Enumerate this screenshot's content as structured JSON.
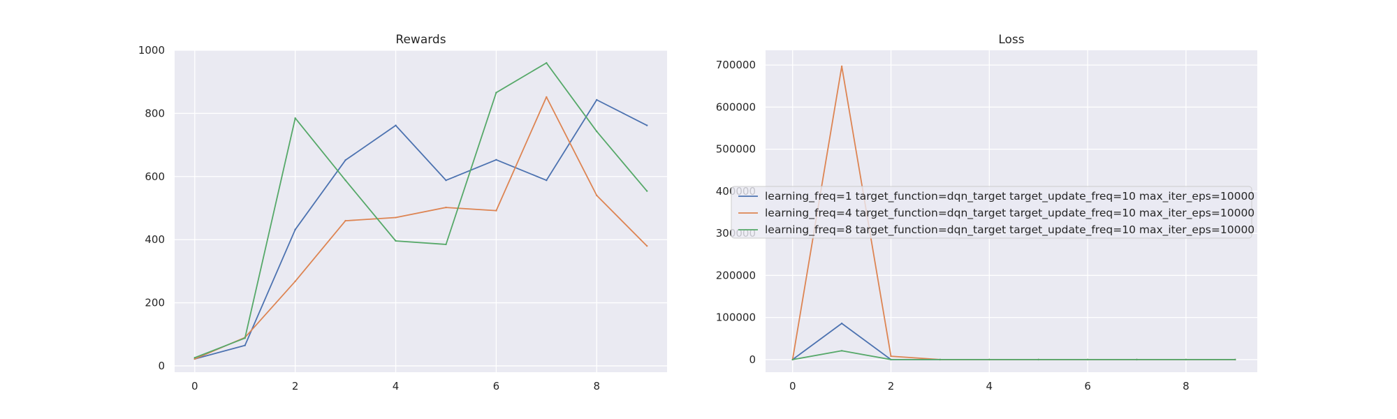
{
  "colors": {
    "background": "#eaeaf2",
    "grid": "#ffffff",
    "series": [
      "#4c72b0",
      "#dd8452",
      "#55a868"
    ]
  },
  "chart_data": [
    {
      "type": "line",
      "title": "Rewards",
      "xlabel": "",
      "ylabel": "",
      "x": [
        0,
        1,
        2,
        3,
        4,
        5,
        6,
        7,
        8,
        9
      ],
      "xlim": [
        -0.4,
        9.4
      ],
      "ylim": [
        -20,
        1000
      ],
      "xticks": [
        0,
        2,
        4,
        6,
        8
      ],
      "yticks": [
        0,
        200,
        400,
        600,
        800,
        1000
      ],
      "grid": true,
      "series": [
        {
          "values": [
            22,
            65,
            432,
            652,
            762,
            588,
            653,
            588,
            843,
            762
          ]
        },
        {
          "values": [
            22,
            90,
            268,
            460,
            470,
            502,
            492,
            852,
            540,
            380
          ]
        },
        {
          "values": [
            26,
            88,
            785,
            588,
            396,
            385,
            866,
            960,
            743,
            554
          ]
        }
      ]
    },
    {
      "type": "line",
      "title": "Loss",
      "xlabel": "",
      "ylabel": "",
      "x": [
        0,
        1,
        2,
        3,
        4,
        5,
        6,
        7,
        8,
        9
      ],
      "xlim": [
        -0.55,
        9.45
      ],
      "ylim": [
        -30000,
        735000
      ],
      "xticks": [
        0,
        2,
        4,
        6,
        8
      ],
      "yticks": [
        0,
        100000,
        200000,
        300000,
        400000,
        500000,
        600000,
        700000
      ],
      "grid": true,
      "legend": {
        "placement": "center-right",
        "entries": [
          "learning_freq=1 target_function=dqn_target target_update_freq=10 max_iter_eps=10000",
          "learning_freq=4 target_function=dqn_target target_update_freq=10 max_iter_eps=10000",
          "learning_freq=8 target_function=dqn_target target_update_freq=10 max_iter_eps=10000"
        ]
      },
      "series": [
        {
          "values": [
            0,
            86000,
            0,
            0,
            0,
            0,
            0,
            0,
            0,
            0
          ]
        },
        {
          "values": [
            0,
            697000,
            8000,
            0,
            0,
            0,
            0,
            0,
            0,
            0
          ]
        },
        {
          "values": [
            0,
            21000,
            0,
            0,
            0,
            0,
            0,
            0,
            0,
            0
          ]
        }
      ]
    }
  ]
}
